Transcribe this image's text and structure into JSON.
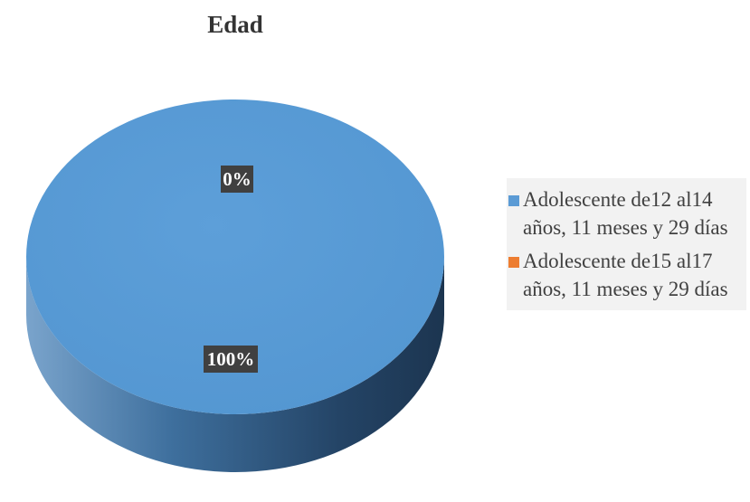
{
  "chart_data": {
    "type": "pie",
    "title": "Edad",
    "categories": [
      "Adolescente de12 al14 años, 11 meses y 29 días",
      "Adolescente de15 al17 años, 11 meses y 29 días"
    ],
    "values": [
      100,
      0
    ],
    "data_labels": [
      "100%",
      "0%"
    ],
    "colors": [
      "#5b9bd5",
      "#ed7d31"
    ],
    "legend": "right",
    "style": "3d"
  },
  "legend": {
    "items": [
      {
        "line1": "Adolescente de12 al14",
        "line2": "años, 11 meses y 29 días",
        "color": "#5b9bd5"
      },
      {
        "line1": "Adolescente de15 al17",
        "line2": "años, 11 meses y 29 días",
        "color": "#ed7d31"
      }
    ]
  }
}
